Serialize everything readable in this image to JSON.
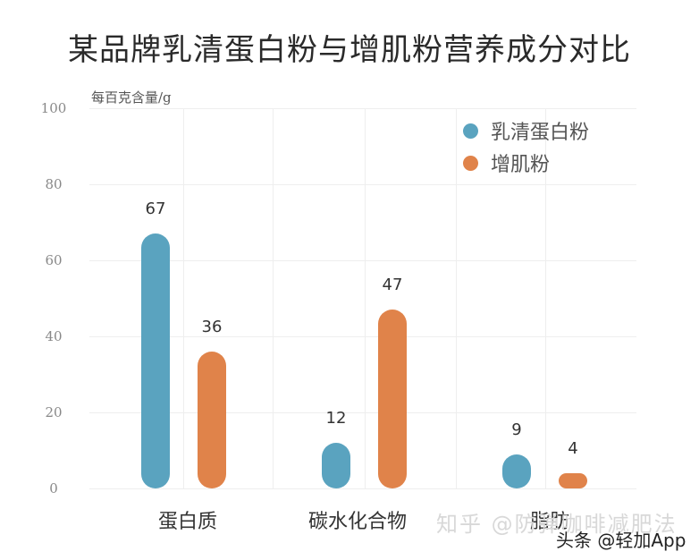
{
  "title": "某品牌乳清蛋白粉与增肌粉营养成分对比",
  "unit_label": "每百克含量/g",
  "legend": [
    {
      "label": "乳清蛋白粉",
      "color": "#5aa3bf"
    },
    {
      "label": "增肌粉",
      "color": "#e0834a"
    }
  ],
  "categories": [
    "蛋白质",
    "碳水化合物",
    "脂肪"
  ],
  "y_ticks": [
    "100",
    "80",
    "60",
    "40",
    "20",
    "0"
  ],
  "watermarks": {
    "zhihu": "知乎 @防弹咖啡减肥法",
    "toutiao": "头条 @轻加App"
  },
  "chart_data": {
    "type": "bar",
    "title": "某品牌乳清蛋白粉与增肌粉营养成分对比",
    "xlabel": "",
    "ylabel": "每百克含量/g",
    "ylim": [
      0,
      100
    ],
    "y_ticks": [
      0,
      20,
      40,
      60,
      80,
      100
    ],
    "grid": true,
    "legend_position": "top-right",
    "categories": [
      "蛋白质",
      "碳水化合物",
      "脂肪"
    ],
    "series": [
      {
        "name": "乳清蛋白粉",
        "color": "#5aa3bf",
        "values": [
          67,
          12,
          9
        ]
      },
      {
        "name": "增肌粉",
        "color": "#e0834a",
        "values": [
          36,
          47,
          4
        ]
      }
    ]
  }
}
